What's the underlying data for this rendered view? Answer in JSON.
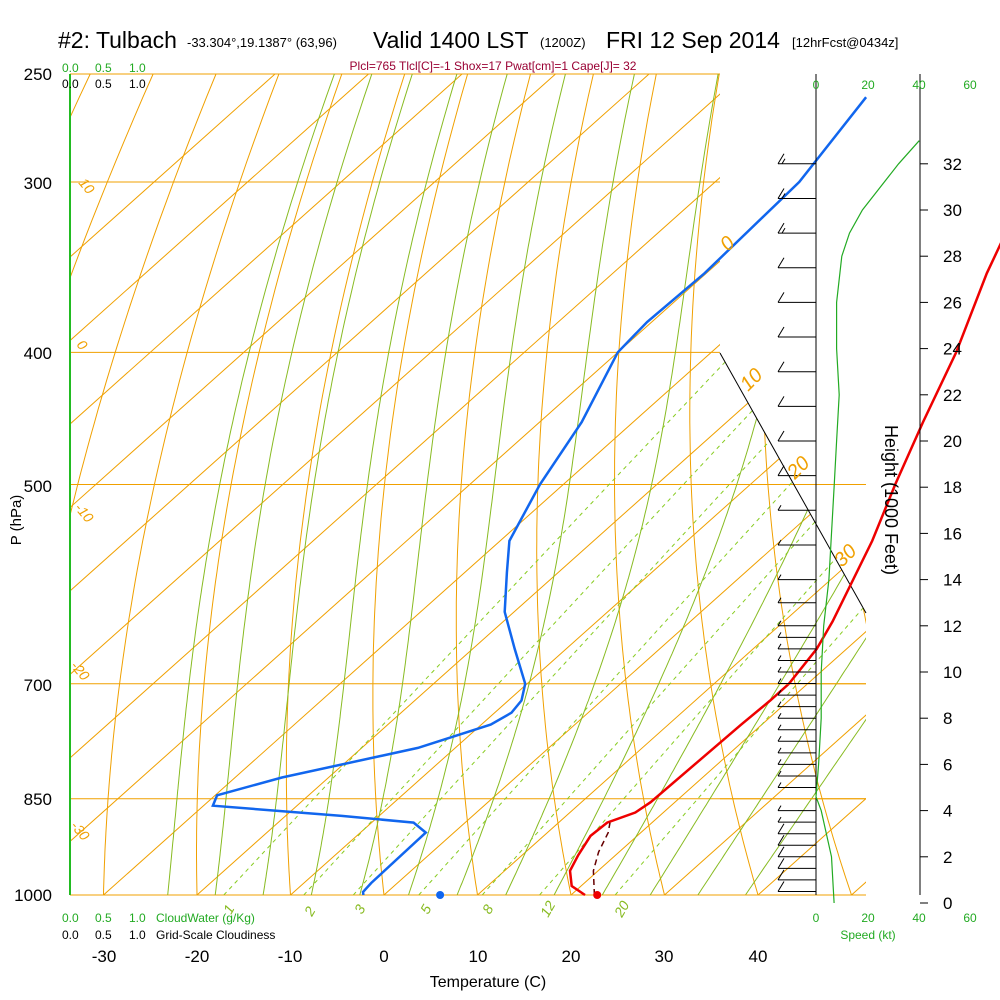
{
  "title": {
    "station": "#2: Tulbach",
    "coords": "-33.304°,19.1387° (63,96)",
    "valid": "Valid 1400 LST",
    "utc": "(1200Z)",
    "date": "FRI 12 Sep 2014",
    "forecast": "[12hrFcst@0434z]"
  },
  "params_line": "Plcl=765 Tlcl[C]=-1 Shox=17 Pwat[cm]=1 Cape[J]= 32",
  "cloud_scale": {
    "top_green": [
      "0.0",
      "0.5",
      "1.0"
    ],
    "top_black": [
      "0.0",
      "0.5",
      "1.0"
    ],
    "bottom_green": [
      "0.0",
      "0.5",
      "1.0"
    ],
    "bottom_green_label": "CloudWater (g/Kg)",
    "bottom_black": [
      "0.0",
      "0.5",
      "1.0"
    ],
    "bottom_black_label": "Grid-Scale Cloudiness"
  },
  "speed_scale": {
    "ticks": [
      "0",
      "20",
      "40",
      "60"
    ],
    "label": "Speed (kt)"
  },
  "colors": {
    "isotherm": "#f0a000",
    "dry_adiabat": "#f0a000",
    "moist_adiabat": "#88bb22",
    "mixing_ratio": "#88cc22",
    "temperature": "#ee0000",
    "dewpoint": "#1166ee",
    "wind_speed": "#22aa22",
    "parcel": "#660000"
  },
  "chart_data": {
    "type": "skew-T log-P sounding",
    "xlabel": "Temperature (C)",
    "ylabel": "P (hPa)",
    "y2label": "Height (1000 Feet)",
    "x_ticks": [
      "-30",
      "-20",
      "-10",
      "0",
      "10",
      "20",
      "30",
      "40"
    ],
    "pressure_ticks": [
      "250",
      "300",
      "400",
      "500",
      "700",
      "850",
      "1000"
    ],
    "height_ticks": [
      "0",
      "2",
      "4",
      "6",
      "8",
      "10",
      "12",
      "14",
      "16",
      "18",
      "20",
      "22",
      "24",
      "26",
      "28",
      "30",
      "32"
    ],
    "dry_adiabat_labels": [
      "10",
      "0",
      "-10",
      "-20",
      "-30"
    ],
    "moist_adiabat_labels": [
      "0",
      "10",
      "20",
      "30"
    ],
    "mixing_ratio_labels": [
      "1",
      "2",
      "3",
      "5",
      "8",
      "12",
      "20"
    ],
    "temperature_profile": [
      {
        "p": 1000,
        "t": 21.5
      },
      {
        "p": 985,
        "t": 19.0
      },
      {
        "p": 960,
        "t": 17.0
      },
      {
        "p": 935,
        "t": 16.0
      },
      {
        "p": 905,
        "t": 15.0
      },
      {
        "p": 885,
        "t": 15.2
      },
      {
        "p": 870,
        "t": 17.0
      },
      {
        "p": 855,
        "t": 17.4
      },
      {
        "p": 800,
        "t": 17.6
      },
      {
        "p": 750,
        "t": 17.8
      },
      {
        "p": 720,
        "t": 18.0
      },
      {
        "p": 700,
        "t": 18.0
      },
      {
        "p": 660,
        "t": 16.8
      },
      {
        "p": 630,
        "t": 15.2
      },
      {
        "p": 550,
        "t": 9.8
      },
      {
        "p": 500,
        "t": 5.5
      },
      {
        "p": 450,
        "t": 1.0
      },
      {
        "p": 400,
        "t": -3.8
      },
      {
        "p": 350,
        "t": -10.0
      },
      {
        "p": 310,
        "t": -15.0
      },
      {
        "p": 290,
        "t": -18.0
      },
      {
        "p": 260,
        "t": -20.8
      }
    ],
    "dewpoint_profile": [
      {
        "p": 1000,
        "td": -2.2
      },
      {
        "p": 995,
        "td": -2.6
      },
      {
        "p": 980,
        "td": -2.8
      },
      {
        "p": 900,
        "td": -3.0
      },
      {
        "p": 885,
        "td": -5.5
      },
      {
        "p": 875,
        "td": -14.0
      },
      {
        "p": 860,
        "td": -29.0
      },
      {
        "p": 845,
        "td": -29.8
      },
      {
        "p": 820,
        "td": -25.0
      },
      {
        "p": 780,
        "td": -14.0
      },
      {
        "p": 750,
        "td": -9.0
      },
      {
        "p": 735,
        "td": -8.2
      },
      {
        "p": 720,
        "td": -8.6
      },
      {
        "p": 700,
        "td": -10.2
      },
      {
        "p": 660,
        "td": -15.5
      },
      {
        "p": 620,
        "td": -21.0
      },
      {
        "p": 580,
        "td": -25.5
      },
      {
        "p": 550,
        "td": -29.0
      },
      {
        "p": 500,
        "td": -32.5
      },
      {
        "p": 450,
        "td": -35.5
      },
      {
        "p": 400,
        "td": -40.0
      },
      {
        "p": 380,
        "td": -40.5
      },
      {
        "p": 350,
        "td": -40.2
      },
      {
        "p": 300,
        "td": -41.0
      },
      {
        "p": 260,
        "td": -44.0
      }
    ],
    "parcel_profile": [
      {
        "p": 1000,
        "t": 22.5
      },
      {
        "p": 960,
        "t": 19.5
      },
      {
        "p": 930,
        "t": 17.8
      },
      {
        "p": 900,
        "t": 16.5
      },
      {
        "p": 885,
        "t": 15.5
      }
    ],
    "surface_temperature_marker": {
      "p": 1000,
      "t": 22.8
    },
    "surface_dewpoint_marker": {
      "p": 1000,
      "td": 6.0
    },
    "wind_speed_profile": [
      {
        "h": 0,
        "kt": 7
      },
      {
        "h": 2,
        "kt": 6
      },
      {
        "h": 4,
        "kt": 2
      },
      {
        "h": 4.6,
        "kt": 0
      },
      {
        "h": 6,
        "kt": 1
      },
      {
        "h": 8,
        "kt": 2
      },
      {
        "h": 10,
        "kt": 2
      },
      {
        "h": 12,
        "kt": 3
      },
      {
        "h": 13,
        "kt": 4
      },
      {
        "h": 14,
        "kt": 5
      },
      {
        "h": 16,
        "kt": 6
      },
      {
        "h": 18,
        "kt": 7
      },
      {
        "h": 20,
        "kt": 8
      },
      {
        "h": 22,
        "kt": 9
      },
      {
        "h": 24,
        "kt": 8
      },
      {
        "h": 26,
        "kt": 8
      },
      {
        "h": 28,
        "kt": 10
      },
      {
        "h": 29,
        "kt": 13
      },
      {
        "h": 30,
        "kt": 18
      },
      {
        "h": 31,
        "kt": 25
      },
      {
        "h": 32,
        "kt": 32
      },
      {
        "h": 33,
        "kt": 40
      }
    ],
    "wind_barbs": [
      {
        "h": 0.5,
        "kt": 10
      },
      {
        "h": 1.0,
        "kt": 10
      },
      {
        "h": 1.5,
        "kt": 10
      },
      {
        "h": 2.0,
        "kt": 10
      },
      {
        "h": 2.5,
        "kt": 10
      },
      {
        "h": 3.0,
        "kt": 10
      },
      {
        "h": 3.5,
        "kt": 5
      },
      {
        "h": 4.0,
        "kt": 5
      },
      {
        "h": 5.0,
        "kt": 5
      },
      {
        "h": 5.5,
        "kt": 5
      },
      {
        "h": 6.0,
        "kt": 5
      },
      {
        "h": 6.5,
        "kt": 5
      },
      {
        "h": 7.0,
        "kt": 5
      },
      {
        "h": 7.5,
        "kt": 5
      },
      {
        "h": 8.0,
        "kt": 5
      },
      {
        "h": 8.5,
        "kt": 5
      },
      {
        "h": 9.0,
        "kt": 5
      },
      {
        "h": 9.5,
        "kt": 5
      },
      {
        "h": 10.0,
        "kt": 5
      },
      {
        "h": 10.5,
        "kt": 5
      },
      {
        "h": 11.0,
        "kt": 5
      },
      {
        "h": 11.5,
        "kt": 5
      },
      {
        "h": 12.0,
        "kt": 5
      },
      {
        "h": 13.0,
        "kt": 5
      },
      {
        "h": 14.0,
        "kt": 5
      },
      {
        "h": 15.5,
        "kt": 5
      },
      {
        "h": 17.0,
        "kt": 5
      },
      {
        "h": 18.5,
        "kt": 10
      },
      {
        "h": 20.0,
        "kt": 10
      },
      {
        "h": 21.5,
        "kt": 10
      },
      {
        "h": 23.0,
        "kt": 10
      },
      {
        "h": 24.5,
        "kt": 10
      },
      {
        "h": 26.0,
        "kt": 10
      },
      {
        "h": 27.5,
        "kt": 10
      },
      {
        "h": 29.0,
        "kt": 15
      },
      {
        "h": 30.5,
        "kt": 15
      },
      {
        "h": 32.0,
        "kt": 15
      }
    ]
  }
}
